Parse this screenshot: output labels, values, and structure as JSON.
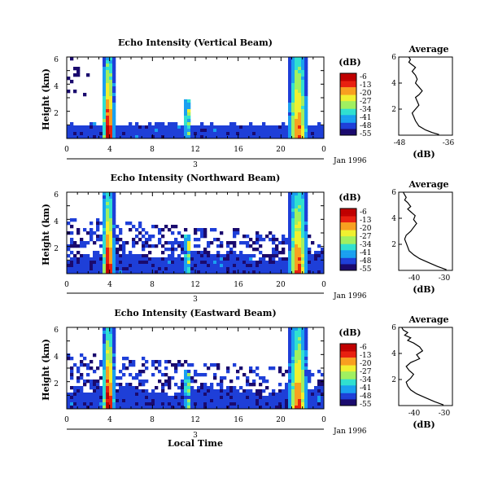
{
  "figure": {
    "xlabel": "Local Time",
    "date_label": "Jan 1996",
    "day_label": "3",
    "colorbar_title": "(dB)",
    "avg_title": "Average",
    "avg_xlabel": "(dB)",
    "colorbar_ticks": [
      "-6",
      "-13",
      "-20",
      "-27",
      "-34",
      "-41",
      "-48",
      "-55"
    ],
    "colorbar_colors": [
      "#1a0a6e",
      "#1e3fd8",
      "#1aa0f0",
      "#30e0d0",
      "#a0f060",
      "#f0f030",
      "#f8a020",
      "#e82010",
      "#c00000"
    ]
  },
  "chart_data": [
    {
      "type": "heatmap",
      "title": "Echo Intensity (Vertical Beam)",
      "ylabel": "Height (km)",
      "x_ticks": [
        "0",
        "4",
        "8",
        "12",
        "16",
        "20",
        "0"
      ],
      "y_ticks": [
        "2",
        "4",
        "6"
      ],
      "xlim": [
        0,
        24
      ],
      "ylim": [
        0,
        6
      ],
      "clim": [
        -55,
        -6
      ],
      "blobs": [
        {
          "x": 3.9,
          "y": 1.5,
          "w": 0.5,
          "h": 4.5,
          "v": -8
        },
        {
          "x": 21.5,
          "y": 1.2,
          "w": 0.6,
          "h": 4.5,
          "v": -18
        }
      ]
    },
    {
      "type": "heatmap",
      "title": "Echo Intensity (Northward Beam)",
      "ylabel": "Height (km)",
      "x_ticks": [
        "0",
        "4",
        "8",
        "12",
        "16",
        "20",
        "0"
      ],
      "y_ticks": [
        "2",
        "4",
        "6"
      ],
      "xlim": [
        0,
        24
      ],
      "ylim": [
        0,
        6
      ],
      "clim": [
        -55,
        -6
      ]
    },
    {
      "type": "heatmap",
      "title": "Echo Intensity (Eastward Beam)",
      "ylabel": "Height (km)",
      "x_ticks": [
        "0",
        "4",
        "8",
        "12",
        "16",
        "20",
        "0"
      ],
      "y_ticks": [
        "2",
        "4",
        "6"
      ],
      "xlim": [
        0,
        24
      ],
      "ylim": [
        0,
        6
      ],
      "clim": [
        -55,
        -6
      ]
    },
    {
      "type": "line",
      "title": "Average",
      "xlabel": "(dB)",
      "x_ticks": [
        "-48",
        "-36"
      ],
      "y_ticks": [
        "2",
        "4",
        "6"
      ],
      "xlim": [
        -50,
        -34
      ],
      "ylim": [
        0,
        6
      ],
      "x": [
        -38,
        -40,
        -42,
        -44,
        -45,
        -45.5,
        -46,
        -45,
        -44,
        -44.5,
        -45,
        -44,
        -43,
        -44,
        -45,
        -44.5,
        -45,
        -46,
        -45,
        -46,
        -47,
        -46.5,
        -47
      ],
      "y": [
        0.05,
        0.2,
        0.4,
        0.7,
        1.1,
        1.4,
        1.7,
        2.0,
        2.3,
        2.6,
        2.9,
        3.1,
        3.4,
        3.7,
        4.0,
        4.3,
        4.6,
        4.9,
        5.2,
        5.4,
        5.6,
        5.8,
        6.0
      ]
    },
    {
      "type": "line",
      "title": "Average",
      "xlabel": "(dB)",
      "x_ticks": [
        "-40",
        "-30"
      ],
      "y_ticks": [
        "2",
        "4",
        "6"
      ],
      "xlim": [
        -44,
        -26
      ],
      "ylim": [
        0,
        6
      ],
      "x": [
        -28,
        -31,
        -34,
        -37,
        -39,
        -40.5,
        -41,
        -41.5,
        -42,
        -41.5,
        -40,
        -39,
        -38,
        -39,
        -38.5,
        -40,
        -41,
        -40,
        -41,
        -42,
        -41.5,
        -42,
        -42.5
      ],
      "y": [
        0.05,
        0.3,
        0.6,
        0.9,
        1.2,
        1.5,
        1.8,
        2.1,
        2.4,
        2.7,
        3.0,
        3.3,
        3.6,
        3.9,
        4.2,
        4.5,
        4.7,
        4.9,
        5.2,
        5.4,
        5.6,
        5.8,
        6.0
      ]
    },
    {
      "type": "line",
      "title": "Average",
      "xlabel": "(dB)",
      "x_ticks": [
        "-40",
        "-30"
      ],
      "y_ticks": [
        "2",
        "4",
        "6"
      ],
      "xlim": [
        -44,
        -26
      ],
      "ylim": [
        0,
        6
      ],
      "x": [
        -29,
        -32,
        -35,
        -38,
        -40,
        -41,
        -41.5,
        -40,
        -39,
        -40.5,
        -41.5,
        -40,
        -37,
        -38,
        -36,
        -37,
        -39,
        -41,
        -40,
        -42,
        -41,
        -42.5,
        -43
      ],
      "y": [
        0.05,
        0.3,
        0.6,
        0.9,
        1.2,
        1.5,
        1.8,
        2.1,
        2.4,
        2.7,
        3.0,
        3.3,
        3.6,
        3.9,
        4.2,
        4.5,
        4.8,
        5.0,
        5.2,
        5.4,
        5.6,
        5.8,
        6.0
      ]
    }
  ]
}
